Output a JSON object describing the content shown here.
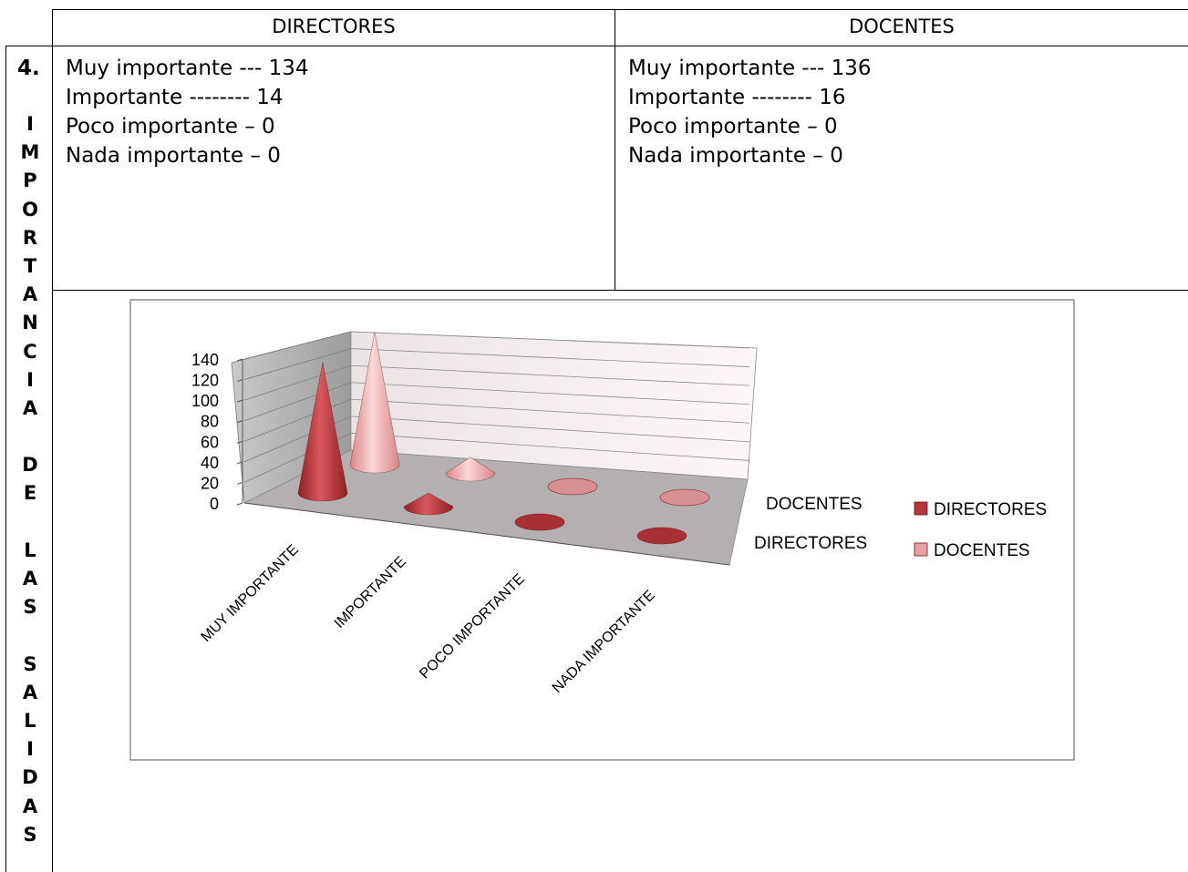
{
  "table": {
    "headers": {
      "directores": "DIRECTORES",
      "docentes": "DOCENTES"
    },
    "question_number": "4.",
    "vertical_title": "IMPORTANCIA DE LAS SALIDAS",
    "directores_lines": [
      "Muy importante --- 134",
      "Importante -------- 14",
      "Poco importante – 0",
      "Nada importante – 0"
    ],
    "docentes_lines": [
      "Muy importante --- 136",
      "Importante -------- 16",
      "Poco importante – 0",
      "Nada importante – 0"
    ]
  },
  "chart_data": {
    "type": "bar",
    "style": "3d-cone",
    "categories": [
      "MUY IMPORTANTE",
      "IMPORTANTE",
      "POCO IMPORTANTE",
      "NADA IMPORTANTE"
    ],
    "depth_labels": [
      "DOCENTES",
      "DIRECTORES"
    ],
    "series": [
      {
        "name": "DIRECTORES",
        "values": [
          134,
          14,
          0,
          0
        ],
        "color": "#b2363a"
      },
      {
        "name": "DOCENTES",
        "values": [
          136,
          16,
          0,
          0
        ],
        "color": "#e8a0a2"
      }
    ],
    "y_ticks": [
      "0",
      "20",
      "40",
      "60",
      "80",
      "100",
      "120",
      "140"
    ],
    "ylim": [
      0,
      140
    ],
    "legend": "right",
    "grid": true
  }
}
